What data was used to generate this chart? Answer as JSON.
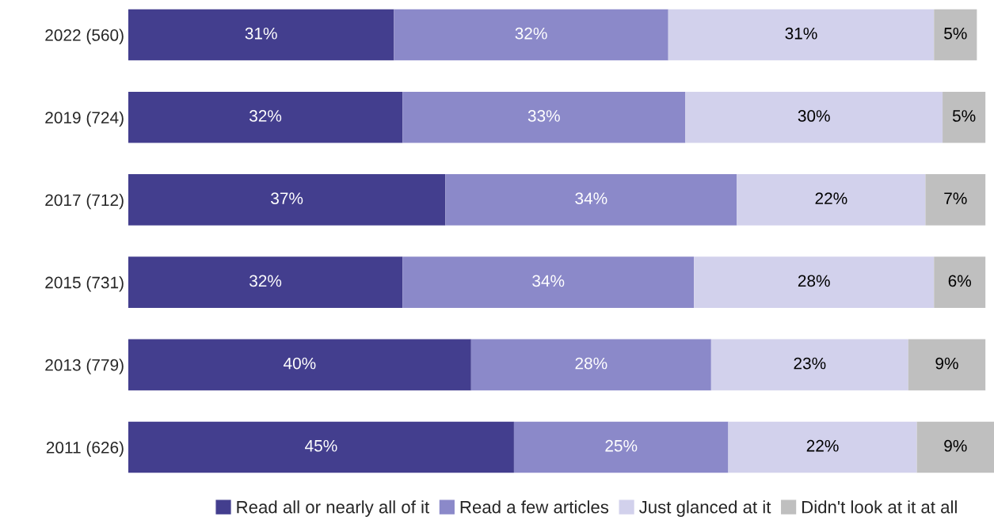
{
  "chart_data": {
    "type": "bar",
    "orientation": "horizontal",
    "stacked": true,
    "legend": "bottom",
    "grid": false,
    "categories": [
      "2022 (560)",
      "2019 (724)",
      "2017 (712)",
      "2015 (731)",
      "2013 (779)",
      "2011 (626)"
    ],
    "series": [
      {
        "name": "Read all or nearly all of it",
        "color": "#433e8e",
        "values": [
          31,
          32,
          37,
          32,
          40,
          45
        ],
        "value_labels": [
          "31%",
          "32%",
          "37%",
          "32%",
          "40%",
          "45%"
        ]
      },
      {
        "name": "Read a few articles",
        "color": "#8b89c9",
        "values": [
          32,
          33,
          34,
          34,
          28,
          25
        ],
        "value_labels": [
          "32%",
          "33%",
          "34%",
          "34%",
          "28%",
          "25%"
        ]
      },
      {
        "name": "Just glanced at it",
        "color": "#d2d1ec",
        "values": [
          31,
          30,
          22,
          28,
          23,
          22
        ],
        "value_labels": [
          "31%",
          "30%",
          "22%",
          "28%",
          "23%",
          "22%"
        ]
      },
      {
        "name": "Didn't look at it at all",
        "color": "#bfbfbf",
        "values": [
          5,
          5,
          7,
          6,
          9,
          9
        ],
        "value_labels": [
          "5%",
          "5%",
          "7%",
          "6%",
          "9%",
          "9%"
        ]
      }
    ]
  }
}
